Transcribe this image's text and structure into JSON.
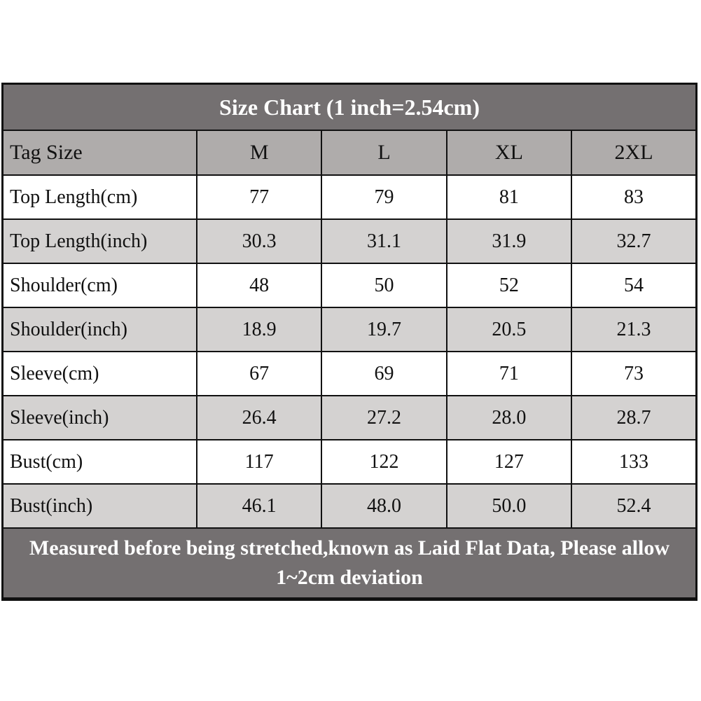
{
  "title": "Size Chart (1 inch=2.54cm)",
  "footer": {
    "line1": "Measured before being stretched,known as Laid Flat Data, Please allow",
    "line2": "1~2cm deviation"
  },
  "colors": {
    "title_bg": "#747071",
    "header_bg": "#afacab",
    "shade_row_bg": "#d4d2d1",
    "plain_row_bg": "#ffffff",
    "border": "#111111",
    "title_text": "#ffffff",
    "body_text": "#111111"
  },
  "chart_data": {
    "type": "table",
    "title": "Size Chart (1 inch=2.54cm)",
    "columns": [
      "Tag Size",
      "M",
      "L",
      "XL",
      "2XL"
    ],
    "rows": [
      {
        "label": "Top Length(cm)",
        "values": [
          "77",
          "79",
          "81",
          "83"
        ]
      },
      {
        "label": "Top Length(inch)",
        "values": [
          "30.3",
          "31.1",
          "31.9",
          "32.7"
        ]
      },
      {
        "label": "Shoulder(cm)",
        "values": [
          "48",
          "50",
          "52",
          "54"
        ]
      },
      {
        "label": "Shoulder(inch)",
        "values": [
          "18.9",
          "19.7",
          "20.5",
          "21.3"
        ]
      },
      {
        "label": "Sleeve(cm)",
        "values": [
          "67",
          "69",
          "71",
          "73"
        ]
      },
      {
        "label": "Sleeve(inch)",
        "values": [
          "26.4",
          "27.2",
          "28.0",
          "28.7"
        ]
      },
      {
        "label": "Bust(cm)",
        "values": [
          "117",
          "122",
          "127",
          "133"
        ]
      },
      {
        "label": "Bust(inch)",
        "values": [
          "46.1",
          "48.0",
          "50.0",
          "52.4"
        ]
      }
    ],
    "note": "Measured before being stretched,known as Laid Flat Data, Please allow 1~2cm deviation"
  }
}
